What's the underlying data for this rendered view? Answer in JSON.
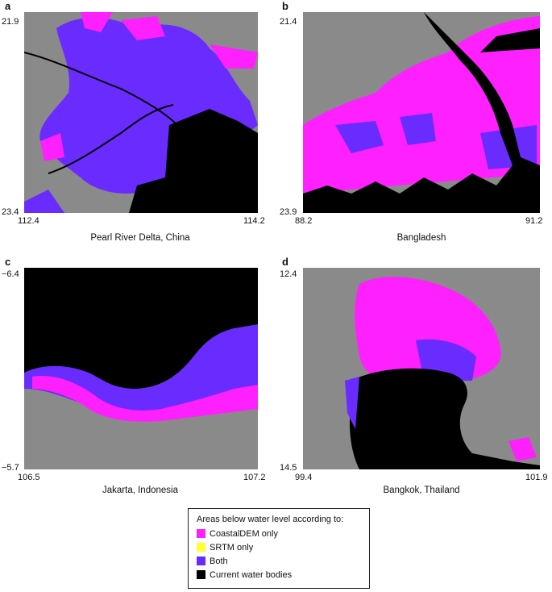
{
  "colors": {
    "coastal_only": "#ff20ff",
    "srtm_only": "#ffff33",
    "both": "#6a2bff",
    "water": "#000000",
    "land": "#8a8a8a"
  },
  "panels": [
    {
      "letter": "a",
      "y_top": "21.9",
      "y_bottom": "23.4",
      "x_left": "112.4",
      "x_right": "114.2",
      "caption": "Pearl River Delta, China"
    },
    {
      "letter": "b",
      "y_top": "21.4",
      "y_bottom": "23.9",
      "x_left": "88.2",
      "x_right": "91.2",
      "caption": "Bangladesh"
    },
    {
      "letter": "c",
      "y_top": "−6.4",
      "y_bottom": "−5.7",
      "x_left": "106.5",
      "x_right": "107.2",
      "caption": "Jakarta, Indonesia"
    },
    {
      "letter": "d",
      "y_top": "12.4",
      "y_bottom": "14.5",
      "x_left": "99.4",
      "x_right": "101.9",
      "caption": "Bangkok, Thailand"
    }
  ],
  "legend": {
    "title": "Areas below water level according to:",
    "items": [
      {
        "label": "CoastalDEM only",
        "color": "#ff20ff",
        "icon": "magenta-swatch"
      },
      {
        "label": "SRTM only",
        "color": "#ffff33",
        "icon": "yellow-swatch"
      },
      {
        "label": "Both",
        "color": "#6a2bff",
        "icon": "purple-swatch"
      },
      {
        "label": "Current water bodies",
        "color": "#000000",
        "icon": "black-swatch"
      }
    ]
  }
}
